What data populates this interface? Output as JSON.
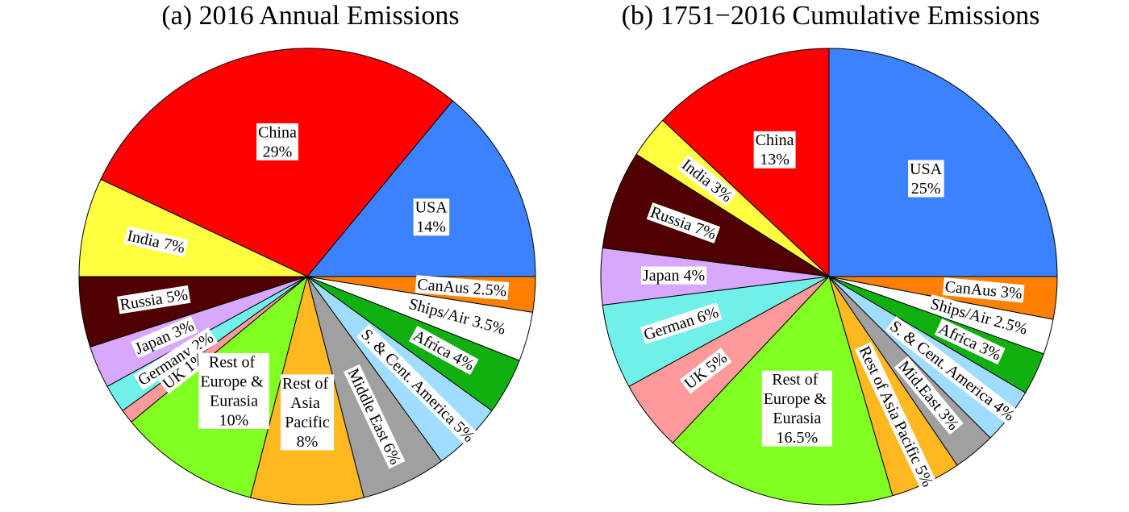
{
  "chart_data": [
    {
      "type": "pie",
      "title": "(a) 2016 Annual Emissions",
      "categories": [
        "USA",
        "China",
        "India",
        "Russia",
        "Japan",
        "Germany",
        "UK",
        "Rest of Europe & Eurasia",
        "Rest of Asia Pacific",
        "Middle East",
        "S. & Cent. America",
        "Africa",
        "Ships/Air",
        "CanAus"
      ],
      "values": [
        14,
        29,
        7,
        5,
        3,
        2,
        1,
        10,
        8,
        6,
        5,
        4,
        3.5,
        2.5
      ],
      "value_labels": [
        "14%",
        "29%",
        "7%",
        "5%",
        "3%",
        "2%",
        "1%",
        "10%",
        "8%",
        "6%",
        "5%",
        "4%",
        "3.5%",
        "2.5%"
      ],
      "colors": [
        "#3c82ff",
        "#ff0000",
        "#ffff40",
        "#500000",
        "#d8a8ff",
        "#70f0e8",
        "#ff9a9a",
        "#80ff20",
        "#ffb820",
        "#a0a0a0",
        "#a0dcff",
        "#10b010",
        "#ffffff",
        "#ff8000"
      ]
    },
    {
      "type": "pie",
      "title": "(b) 1751−2016 Cumulative Emissions",
      "categories": [
        "USA",
        "China",
        "India",
        "Russia",
        "Japan",
        "German",
        "UK",
        "Rest of Europe & Eurasia",
        "Rest of Asia Pacific",
        "Mid.East",
        "S. & Cent. America",
        "Africa",
        "Ships/Air",
        "CanAus"
      ],
      "values": [
        25,
        13,
        3,
        7,
        4,
        6,
        5,
        16.5,
        5,
        3,
        4,
        3,
        2.5,
        3
      ],
      "value_labels": [
        "25%",
        "13%",
        "3%",
        "7%",
        "4%",
        "6%",
        "5%",
        "16.5%",
        "5%",
        "3%",
        "4%",
        "3%",
        "2.5%",
        "3%"
      ],
      "colors": [
        "#3c82ff",
        "#ff0000",
        "#ffff40",
        "#500000",
        "#d8a8ff",
        "#70f0e8",
        "#ff9a9a",
        "#80ff20",
        "#ffb820",
        "#a0a0a0",
        "#a0dcff",
        "#10b010",
        "#ffffff",
        "#ff8000"
      ]
    }
  ]
}
